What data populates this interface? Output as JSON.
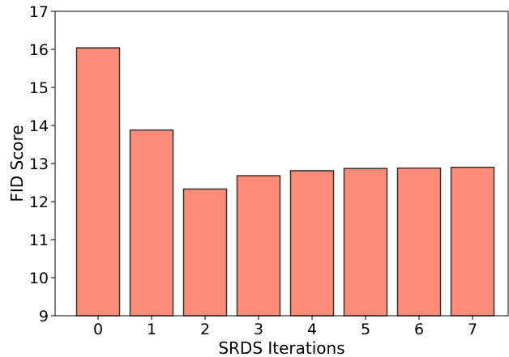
{
  "chart_data": {
    "type": "bar",
    "categories": [
      "0",
      "1",
      "2",
      "3",
      "4",
      "5",
      "6",
      "7"
    ],
    "values": [
      16.04,
      13.88,
      12.33,
      12.68,
      12.81,
      12.87,
      12.88,
      12.9
    ],
    "title": "",
    "xlabel": "SRDS Iterations",
    "ylabel": "FID Score",
    "ylim": [
      9,
      17
    ],
    "yticks": [
      "9",
      "10",
      "11",
      "12",
      "13",
      "14",
      "15",
      "16",
      "17"
    ],
    "bar_color": "#ff8c79",
    "edge_color": "#333333",
    "grid": false
  }
}
